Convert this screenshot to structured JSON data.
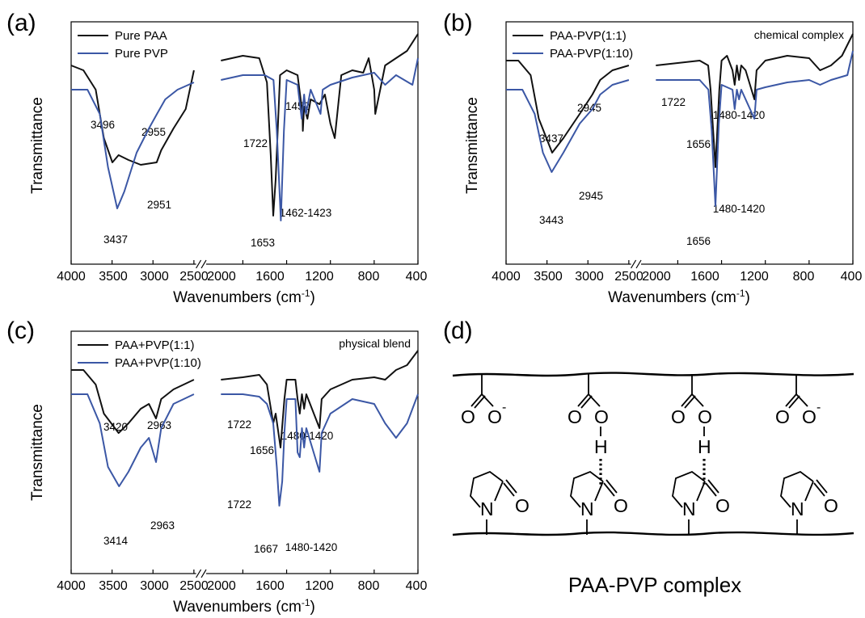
{
  "figure": {
    "complex_diagram": {
      "letter": "(d)",
      "title": "PAA-PVP complex",
      "atoms": {
        "O": "O",
        "H": "H",
        "N": "N",
        "minus": "-"
      }
    }
  },
  "colors": {
    "black_series": "#111111",
    "blue_series": "#3b57a5",
    "axis": "#000000"
  },
  "chart_data": [
    {
      "type": "line",
      "panel": "(a)",
      "note": "",
      "ylabel": "Transmittance",
      "xlabel": "Wavenumbers (cm",
      "xlabel_sup": "-1",
      "xlabel_end": ")",
      "x_axis": "reversed, broken between 2500 and 2200 cm-1",
      "xticks": [
        "4000",
        "3500",
        "3000",
        "2500",
        "2000",
        "1600",
        "1200",
        "800",
        "400"
      ],
      "series": [
        {
          "name": "Pure PAA",
          "color": "#111111",
          "seg1": [
            [
              4000,
              0.82
            ],
            [
              3850,
              0.8
            ],
            [
              3700,
              0.72
            ],
            [
              3600,
              0.52
            ],
            [
              3496,
              0.42
            ],
            [
              3420,
              0.45
            ],
            [
              3300,
              0.43
            ],
            [
              3150,
              0.41
            ],
            [
              2955,
              0.42
            ],
            [
              2900,
              0.47
            ],
            [
              2750,
              0.56
            ],
            [
              2600,
              0.64
            ],
            [
              2500,
              0.8
            ]
          ],
          "seg2": [
            [
              2200,
              0.84
            ],
            [
              2000,
              0.86
            ],
            [
              1850,
              0.85
            ],
            [
              1780,
              0.75
            ],
            [
              1745,
              0.45
            ],
            [
              1722,
              0.2
            ],
            [
              1700,
              0.35
            ],
            [
              1660,
              0.78
            ],
            [
              1600,
              0.8
            ],
            [
              1500,
              0.78
            ],
            [
              1455,
              0.62
            ],
            [
              1452,
              0.55
            ],
            [
              1440,
              0.65
            ],
            [
              1410,
              0.6
            ],
            [
              1380,
              0.68
            ],
            [
              1300,
              0.66
            ],
            [
              1250,
              0.7
            ],
            [
              1200,
              0.58
            ],
            [
              1160,
              0.52
            ],
            [
              1100,
              0.78
            ],
            [
              1000,
              0.8
            ],
            [
              900,
              0.79
            ],
            [
              850,
              0.85
            ],
            [
              800,
              0.72
            ],
            [
              790,
              0.62
            ],
            [
              700,
              0.82
            ],
            [
              600,
              0.85
            ],
            [
              500,
              0.88
            ],
            [
              400,
              0.95
            ]
          ]
        },
        {
          "name": "Pure PVP",
          "color": "#3b57a5",
          "seg1": [
            [
              4000,
              0.72
            ],
            [
              3800,
              0.72
            ],
            [
              3650,
              0.62
            ],
            [
              3550,
              0.4
            ],
            [
              3437,
              0.23
            ],
            [
              3350,
              0.3
            ],
            [
              3200,
              0.46
            ],
            [
              3050,
              0.56
            ],
            [
              2951,
              0.62
            ],
            [
              2850,
              0.68
            ],
            [
              2700,
              0.72
            ],
            [
              2500,
              0.75
            ]
          ],
          "seg2": [
            [
              2200,
              0.76
            ],
            [
              2000,
              0.78
            ],
            [
              1800,
              0.78
            ],
            [
              1720,
              0.76
            ],
            [
              1690,
              0.55
            ],
            [
              1653,
              0.18
            ],
            [
              1625,
              0.55
            ],
            [
              1600,
              0.76
            ],
            [
              1500,
              0.74
            ],
            [
              1462,
              0.6
            ],
            [
              1440,
              0.7
            ],
            [
              1423,
              0.62
            ],
            [
              1380,
              0.72
            ],
            [
              1290,
              0.62
            ],
            [
              1270,
              0.72
            ],
            [
              1200,
              0.74
            ],
            [
              1000,
              0.77
            ],
            [
              800,
              0.79
            ],
            [
              700,
              0.74
            ],
            [
              600,
              0.78
            ],
            [
              450,
              0.74
            ],
            [
              400,
              0.85
            ]
          ]
        }
      ],
      "peak_labels": [
        "3496",
        "2955",
        "1722",
        "1452",
        "3437",
        "2951",
        "1653",
        "1462-1423"
      ]
    },
    {
      "type": "line",
      "panel": "(b)",
      "note": "chemical complex",
      "ylabel": "Transmittance",
      "xlabel": "Wavenumbers (cm",
      "xlabel_sup": "-1",
      "xlabel_end": ")",
      "x_axis": "reversed, broken between 2500 and 2200 cm-1",
      "xticks": [
        "4000",
        "3500",
        "3000",
        "2500",
        "2000",
        "1600",
        "1200",
        "800",
        "400"
      ],
      "series": [
        {
          "name": "PAA-PVP(1:1)",
          "color": "#111111",
          "seg1": [
            [
              4000,
              0.84
            ],
            [
              3850,
              0.84
            ],
            [
              3700,
              0.78
            ],
            [
              3600,
              0.6
            ],
            [
              3437,
              0.46
            ],
            [
              3300,
              0.52
            ],
            [
              3100,
              0.62
            ],
            [
              2945,
              0.7
            ],
            [
              2850,
              0.76
            ],
            [
              2700,
              0.8
            ],
            [
              2500,
              0.82
            ]
          ],
          "seg2": [
            [
              2200,
              0.82
            ],
            [
              2000,
              0.83
            ],
            [
              1800,
              0.84
            ],
            [
              1722,
              0.82
            ],
            [
              1700,
              0.72
            ],
            [
              1656,
              0.4
            ],
            [
              1620,
              0.72
            ],
            [
              1600,
              0.84
            ],
            [
              1550,
              0.86
            ],
            [
              1500,
              0.8
            ],
            [
              1480,
              0.74
            ],
            [
              1460,
              0.82
            ],
            [
              1440,
              0.76
            ],
            [
              1420,
              0.82
            ],
            [
              1380,
              0.8
            ],
            [
              1300,
              0.68
            ],
            [
              1280,
              0.8
            ],
            [
              1200,
              0.84
            ],
            [
              1000,
              0.86
            ],
            [
              800,
              0.85
            ],
            [
              700,
              0.8
            ],
            [
              600,
              0.82
            ],
            [
              500,
              0.86
            ],
            [
              400,
              0.95
            ]
          ]
        },
        {
          "name": "PAA-PVP(1:10)",
          "color": "#3b57a5",
          "seg1": [
            [
              4000,
              0.72
            ],
            [
              3800,
              0.72
            ],
            [
              3650,
              0.62
            ],
            [
              3550,
              0.46
            ],
            [
              3443,
              0.38
            ],
            [
              3300,
              0.46
            ],
            [
              3100,
              0.58
            ],
            [
              2945,
              0.64
            ],
            [
              2850,
              0.7
            ],
            [
              2700,
              0.74
            ],
            [
              2500,
              0.76
            ]
          ],
          "seg2": [
            [
              2200,
              0.76
            ],
            [
              2000,
              0.76
            ],
            [
              1800,
              0.76
            ],
            [
              1720,
              0.72
            ],
            [
              1690,
              0.55
            ],
            [
              1656,
              0.24
            ],
            [
              1625,
              0.58
            ],
            [
              1600,
              0.74
            ],
            [
              1500,
              0.72
            ],
            [
              1480,
              0.64
            ],
            [
              1460,
              0.72
            ],
            [
              1440,
              0.68
            ],
            [
              1420,
              0.72
            ],
            [
              1300,
              0.6
            ],
            [
              1280,
              0.72
            ],
            [
              1200,
              0.73
            ],
            [
              1000,
              0.75
            ],
            [
              800,
              0.76
            ],
            [
              700,
              0.74
            ],
            [
              600,
              0.76
            ],
            [
              450,
              0.78
            ],
            [
              400,
              0.88
            ]
          ]
        }
      ],
      "peak_labels": [
        "3437",
        "2945",
        "1722",
        "1656",
        "1480-1420",
        "3443",
        "2945",
        "1656",
        "1480-1420"
      ]
    },
    {
      "type": "line",
      "panel": "(c)",
      "note": "physical blend",
      "ylabel": "Transmittance",
      "xlabel": "Wavenumbers (cm",
      "xlabel_sup": "-1",
      "xlabel_end": ")",
      "x_axis": "reversed, broken between 2500 and 2200 cm-1",
      "xticks": [
        "4000",
        "3500",
        "3000",
        "2500",
        "2000",
        "1600",
        "1200",
        "800",
        "400"
      ],
      "series": [
        {
          "name": "PAA+PVP(1:1)",
          "color": "#111111",
          "seg1": [
            [
              4000,
              0.84
            ],
            [
              3850,
              0.84
            ],
            [
              3700,
              0.78
            ],
            [
              3600,
              0.66
            ],
            [
              3420,
              0.58
            ],
            [
              3300,
              0.62
            ],
            [
              3150,
              0.68
            ],
            [
              3050,
              0.7
            ],
            [
              2963,
              0.64
            ],
            [
              2900,
              0.72
            ],
            [
              2750,
              0.76
            ],
            [
              2500,
              0.8
            ]
          ],
          "seg2": [
            [
              2200,
              0.8
            ],
            [
              2000,
              0.81
            ],
            [
              1850,
              0.82
            ],
            [
              1780,
              0.78
            ],
            [
              1722,
              0.62
            ],
            [
              1700,
              0.66
            ],
            [
              1656,
              0.52
            ],
            [
              1620,
              0.72
            ],
            [
              1600,
              0.8
            ],
            [
              1520,
              0.8
            ],
            [
              1500,
              0.72
            ],
            [
              1480,
              0.66
            ],
            [
              1460,
              0.74
            ],
            [
              1440,
              0.68
            ],
            [
              1420,
              0.74
            ],
            [
              1300,
              0.6
            ],
            [
              1280,
              0.72
            ],
            [
              1200,
              0.76
            ],
            [
              1000,
              0.8
            ],
            [
              800,
              0.81
            ],
            [
              700,
              0.8
            ],
            [
              600,
              0.84
            ],
            [
              500,
              0.86
            ],
            [
              400,
              0.92
            ]
          ]
        },
        {
          "name": "PAA+PVP(1:10)",
          "color": "#3b57a5",
          "seg1": [
            [
              4000,
              0.74
            ],
            [
              3800,
              0.74
            ],
            [
              3650,
              0.62
            ],
            [
              3550,
              0.44
            ],
            [
              3414,
              0.36
            ],
            [
              3300,
              0.42
            ],
            [
              3150,
              0.52
            ],
            [
              3050,
              0.56
            ],
            [
              2963,
              0.46
            ],
            [
              2900,
              0.6
            ],
            [
              2750,
              0.7
            ],
            [
              2500,
              0.74
            ]
          ],
          "seg2": [
            [
              2200,
              0.74
            ],
            [
              2000,
              0.74
            ],
            [
              1850,
              0.73
            ],
            [
              1780,
              0.7
            ],
            [
              1722,
              0.62
            ],
            [
              1690,
              0.44
            ],
            [
              1667,
              0.28
            ],
            [
              1640,
              0.38
            ],
            [
              1620,
              0.58
            ],
            [
              1600,
              0.72
            ],
            [
              1520,
              0.72
            ],
            [
              1500,
              0.5
            ],
            [
              1480,
              0.48
            ],
            [
              1460,
              0.6
            ],
            [
              1440,
              0.52
            ],
            [
              1420,
              0.6
            ],
            [
              1300,
              0.42
            ],
            [
              1280,
              0.58
            ],
            [
              1200,
              0.66
            ],
            [
              1000,
              0.72
            ],
            [
              800,
              0.7
            ],
            [
              700,
              0.62
            ],
            [
              600,
              0.56
            ],
            [
              500,
              0.62
            ],
            [
              400,
              0.74
            ]
          ]
        }
      ],
      "peak_labels": [
        "3420",
        "2963",
        "1722",
        "1656",
        "1480-1420",
        "3414",
        "2963",
        "1722",
        "1667",
        "1480-1420"
      ]
    }
  ]
}
